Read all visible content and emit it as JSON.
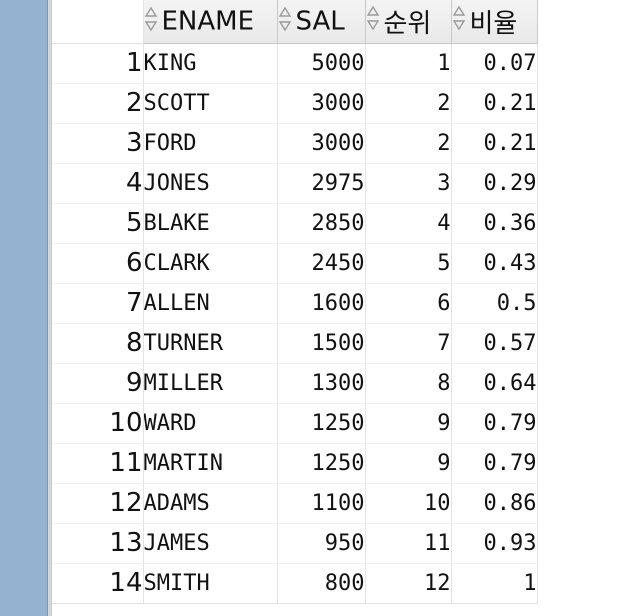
{
  "columns": [
    {
      "label": "ENAME"
    },
    {
      "label": "SAL"
    },
    {
      "label": "순위"
    },
    {
      "label": "비율"
    }
  ],
  "rows": [
    {
      "num": "1",
      "ename": "KING",
      "sal": "5000",
      "rank": "1",
      "ratio": "0.07"
    },
    {
      "num": "2",
      "ename": "SCOTT",
      "sal": "3000",
      "rank": "2",
      "ratio": "0.21"
    },
    {
      "num": "3",
      "ename": "FORD",
      "sal": "3000",
      "rank": "2",
      "ratio": "0.21"
    },
    {
      "num": "4",
      "ename": "JONES",
      "sal": "2975",
      "rank": "3",
      "ratio": "0.29"
    },
    {
      "num": "5",
      "ename": "BLAKE",
      "sal": "2850",
      "rank": "4",
      "ratio": "0.36"
    },
    {
      "num": "6",
      "ename": "CLARK",
      "sal": "2450",
      "rank": "5",
      "ratio": "0.43"
    },
    {
      "num": "7",
      "ename": "ALLEN",
      "sal": "1600",
      "rank": "6",
      "ratio": "0.5"
    },
    {
      "num": "8",
      "ename": "TURNER",
      "sal": "1500",
      "rank": "7",
      "ratio": "0.57"
    },
    {
      "num": "9",
      "ename": "MILLER",
      "sal": "1300",
      "rank": "8",
      "ratio": "0.64"
    },
    {
      "num": "10",
      "ename": "WARD",
      "sal": "1250",
      "rank": "9",
      "ratio": "0.79"
    },
    {
      "num": "11",
      "ename": "MARTIN",
      "sal": "1250",
      "rank": "9",
      "ratio": "0.79"
    },
    {
      "num": "12",
      "ename": "ADAMS",
      "sal": "1100",
      "rank": "10",
      "ratio": "0.86"
    },
    {
      "num": "13",
      "ename": "JAMES",
      "sal": "950",
      "rank": "11",
      "ratio": "0.93"
    },
    {
      "num": "14",
      "ename": "SMITH",
      "sal": "800",
      "rank": "12",
      "ratio": "1"
    }
  ],
  "icons": {
    "sort": "sort-arrows-icon"
  },
  "colors": {
    "left_panel": "#95b3d0",
    "header_bg": "#eeeeee",
    "grid_line": "#e3e3e3"
  }
}
